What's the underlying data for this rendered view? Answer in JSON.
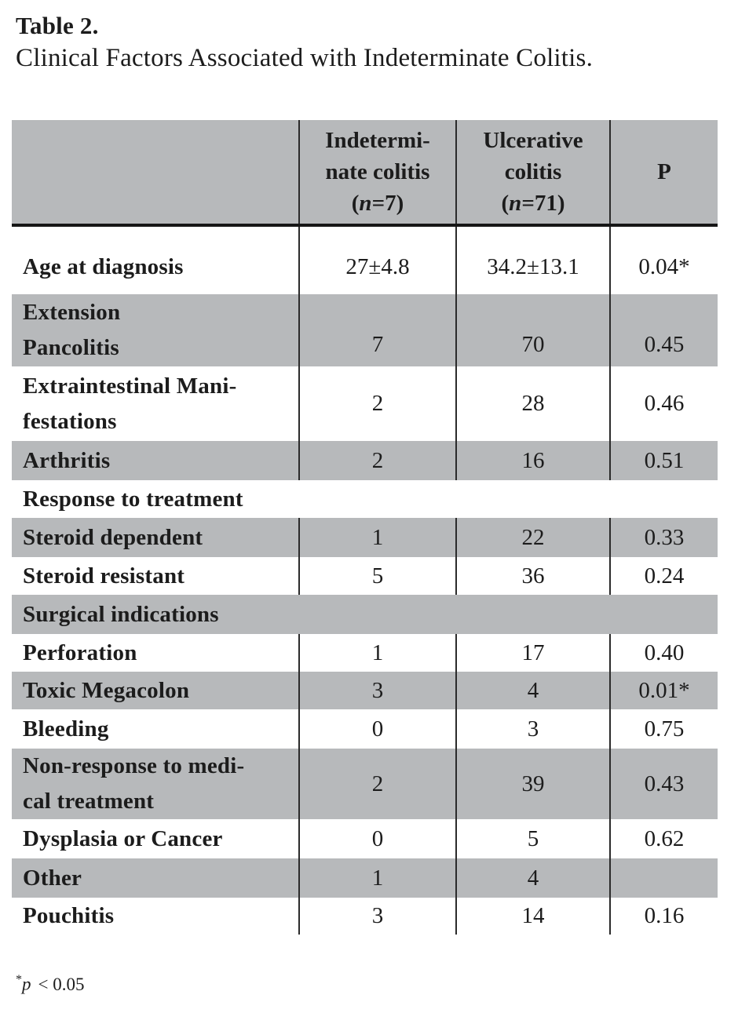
{
  "title": {
    "label": "Table 2.",
    "caption": "Clinical Factors Associated with Indeterminate Colitis."
  },
  "table": {
    "columns": [
      {
        "key": "factor",
        "lines": []
      },
      {
        "key": "indeterminate-colitis",
        "lines": [
          "Indetermi-",
          "nate colitis",
          "(n=7)"
        ]
      },
      {
        "key": "ulcerative-colitis",
        "lines": [
          "Ulcerative",
          "colitis",
          "(n=71)"
        ]
      },
      {
        "key": "p-value",
        "lines": [
          "P"
        ]
      }
    ],
    "rows": [
      {
        "label": [
          "Age at diagnosis"
        ],
        "values": [
          "27±4.8",
          "34.2±13.1",
          "0.04*"
        ],
        "shade": false
      },
      {
        "label": [
          "Extension",
          "Pancolitis"
        ],
        "values": [
          "7",
          "70",
          "0.45"
        ],
        "shade": true
      },
      {
        "label": [
          "Extraintestinal Mani-",
          "festations"
        ],
        "values": [
          "2",
          "28",
          "0.46"
        ],
        "shade": false
      },
      {
        "label": [
          "Arthritis"
        ],
        "values": [
          "2",
          "16",
          "0.51"
        ],
        "shade": true
      },
      {
        "label": [
          "Response to treatment"
        ],
        "section": true,
        "shade": false
      },
      {
        "label": [
          "Steroid dependent"
        ],
        "values": [
          "1",
          "22",
          "0.33"
        ],
        "shade": true
      },
      {
        "label": [
          "Steroid resistant"
        ],
        "values": [
          "5",
          "36",
          "0.24"
        ],
        "shade": false
      },
      {
        "label": [
          "Surgical indications"
        ],
        "section": true,
        "shade": true
      },
      {
        "label": [
          "Perforation"
        ],
        "values": [
          "1",
          "17",
          "0.40"
        ],
        "shade": false
      },
      {
        "label": [
          "Toxic Megacolon"
        ],
        "values": [
          "3",
          "4",
          "0.01*"
        ],
        "shade": true
      },
      {
        "label": [
          "Bleeding"
        ],
        "values": [
          "0",
          "3",
          "0.75"
        ],
        "shade": false
      },
      {
        "label": [
          "Non-response to medi-",
          "cal treatment"
        ],
        "values": [
          "2",
          "39",
          "0.43"
        ],
        "shade": true
      },
      {
        "label": [
          "Dysplasia or Cancer"
        ],
        "values": [
          "0",
          "5",
          "0.62"
        ],
        "shade": false
      },
      {
        "label": [
          "Other"
        ],
        "values": [
          "1",
          "4",
          ""
        ],
        "shade": true
      },
      {
        "label": [
          "Pouchitis"
        ],
        "values": [
          "3",
          "14",
          "0.16"
        ],
        "shade": false
      }
    ]
  },
  "footnote": {
    "marker": "*",
    "symbol": "p",
    "text": "< 0.05"
  },
  "colors": {
    "shade": "#b7b9bb",
    "line": "#2b2b2b",
    "thick_line": "#161616",
    "text": "#1c1c1c",
    "page_bg": "#ffffff"
  }
}
